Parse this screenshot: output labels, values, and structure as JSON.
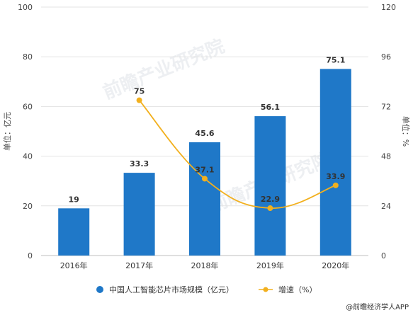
{
  "chart_data": {
    "type": "bar",
    "categories": [
      "2016年",
      "2017年",
      "2018年",
      "2019年",
      "2020年"
    ],
    "series": [
      {
        "name": "中国人工智能芯片市场规模（亿元）",
        "type": "bar",
        "axis": "left",
        "values": [
          19,
          33.3,
          45.6,
          56.1,
          75.1
        ],
        "labels": [
          "19",
          "33.3",
          "45.6",
          "56.1",
          "75.1"
        ],
        "color": "#1f78c8"
      },
      {
        "name": "增速（%）",
        "type": "line",
        "axis": "right",
        "values": [
          null,
          75,
          37.1,
          22.9,
          33.9
        ],
        "labels": [
          "",
          "75",
          "37.1",
          "22.9",
          "33.9"
        ],
        "color": "#f2b01e"
      }
    ],
    "ylabel": "单位：亿元",
    "ylabel_right": "单位：%",
    "ylim": [
      0,
      100
    ],
    "ylim_right": [
      0,
      120
    ],
    "yticks": [
      "0",
      "20",
      "40",
      "60",
      "80",
      "100"
    ],
    "yticks_right": [
      "0",
      "24",
      "48",
      "72",
      "96",
      "120"
    ],
    "grid": true,
    "legend_position": "bottom"
  },
  "watermark": "前瞻产业研究院",
  "source": "@前瞻经济学人APP"
}
